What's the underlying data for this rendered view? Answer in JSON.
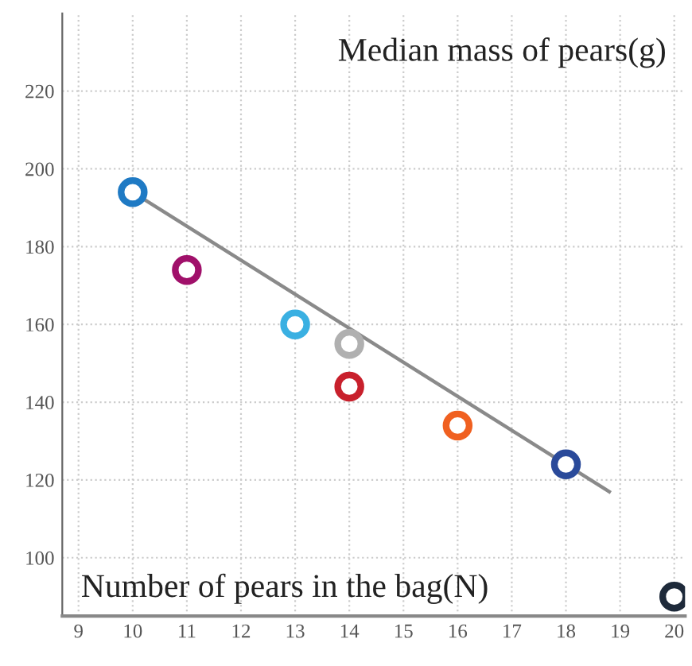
{
  "chart_data": {
    "type": "scatter",
    "xlabel": "Number of pears in the bag(N)",
    "ylabel": "Median mass of pears(g)",
    "xlim": [
      8.7,
      20.2
    ],
    "ylim": [
      85,
      240
    ],
    "xticks": [
      9,
      10,
      11,
      12,
      13,
      14,
      15,
      16,
      17,
      18,
      19,
      20
    ],
    "yticks": [
      100,
      120,
      140,
      160,
      180,
      200,
      220
    ],
    "grid": true,
    "series": [
      {
        "marker": "circle",
        "x": [
          10,
          11,
          13,
          14,
          14,
          16,
          18,
          20
        ],
        "values": [
          194,
          174,
          160,
          155,
          144,
          134,
          124,
          90
        ],
        "colors": [
          "#1f7ac4",
          "#a0106a",
          "#3ab0e2",
          "#b0b0b0",
          "#c8202c",
          "#f06020",
          "#2a4a9a",
          "#1e2a3a"
        ]
      },
      {
        "type": "line",
        "x": [
          10,
          18.8
        ],
        "values": [
          194,
          117
        ],
        "color": "#8a8a8a",
        "line_style": "solid",
        "marker": "none"
      }
    ]
  }
}
